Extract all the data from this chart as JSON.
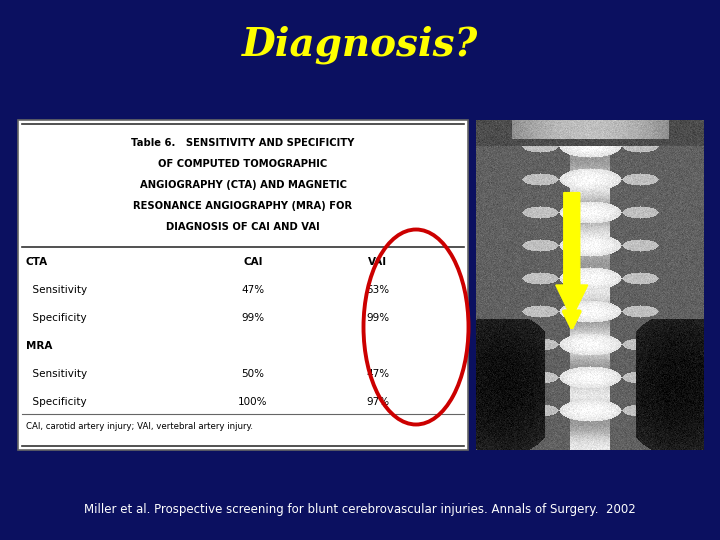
{
  "background_color": "#0b1060",
  "title": "Diagnosis?",
  "title_color": "#ffff00",
  "title_fontsize": 28,
  "citation_color": "#ffffff",
  "citation_fontsize": 8.5,
  "table_title_lines": [
    "Table 6.   SENSITIVITY AND SPECIFICITY",
    "OF COMPUTED TOMOGRAPHIC",
    "ANGIOGRAPHY (CTA) AND MAGNETIC",
    "RESONANCE ANGIOGRAPHY (MRA) FOR",
    "DIAGNOSIS OF CAI AND VAI"
  ],
  "rows": [
    [
      "CTA",
      "CAI",
      "VAI"
    ],
    [
      "  Sensitivity",
      "47%",
      "53%"
    ],
    [
      "  Specificity",
      "99%",
      "99%"
    ],
    [
      "MRA",
      "",
      ""
    ],
    [
      "  Sensitivity",
      "50%",
      "47%"
    ],
    [
      "  Specificity",
      "100%",
      "97%"
    ]
  ],
  "footnote": "CAI, carotid artery injury; VAI, vertebral artery injury.",
  "circle_color": "#cc0000",
  "arrow_color": "#ffff00"
}
